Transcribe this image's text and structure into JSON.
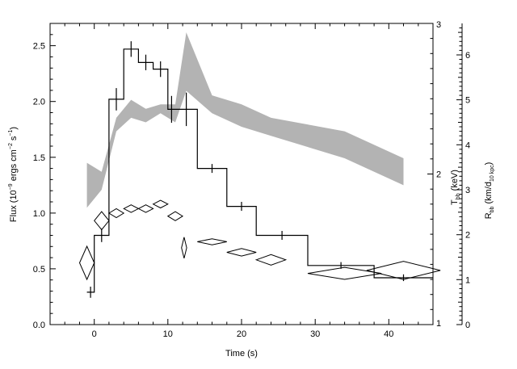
{
  "chart_data": {
    "type": "line",
    "xlabel": "Time (s)",
    "ylabel": {
      "main": "Flux",
      "unit_prefix": "(10",
      "unit_exp1": "−9",
      "unit_mid1": " ergs cm",
      "unit_exp2": "−2",
      "unit_mid2": " s",
      "unit_exp3": "−1",
      "unit_suffix": ")"
    },
    "y2label": {
      "main": "T",
      "sub": "bb",
      "unit": " (keV)"
    },
    "y3label": {
      "main": "R",
      "sub": "bb",
      "unit_start": " (km/d",
      "unit_sub": "10 kpc",
      "unit_end": ")"
    },
    "xlim": [
      -6,
      46
    ],
    "ylim": [
      0,
      2.7
    ],
    "y2lim": [
      1,
      3
    ],
    "y3lim": [
      0,
      6.7
    ],
    "x_ticks": [
      {
        "value": 0,
        "label": "0"
      },
      {
        "value": 10,
        "label": "10"
      },
      {
        "value": 20,
        "label": "20"
      },
      {
        "value": 30,
        "label": "30"
      },
      {
        "value": 40,
        "label": "40"
      }
    ],
    "y_ticks": [
      {
        "value": 0,
        "label": "0.0"
      },
      {
        "value": 0.5,
        "label": "0.5"
      },
      {
        "value": 1.0,
        "label": "1.0"
      },
      {
        "value": 1.5,
        "label": "1.5"
      },
      {
        "value": 2.0,
        "label": "2.0"
      },
      {
        "value": 2.5,
        "label": "2.5"
      }
    ],
    "y2_ticks": [
      {
        "value": 1,
        "label": "1"
      },
      {
        "value": 2,
        "label": "2"
      },
      {
        "value": 3,
        "label": "3"
      }
    ],
    "y3_ticks": [
      {
        "value": 0,
        "label": "0"
      },
      {
        "value": 1,
        "label": "1"
      },
      {
        "value": 2,
        "label": "2"
      },
      {
        "value": 3,
        "label": "3"
      },
      {
        "value": 4,
        "label": "4"
      },
      {
        "value": 5,
        "label": "5"
      },
      {
        "value": 6,
        "label": "6"
      }
    ],
    "series": [
      {
        "kind": "step-histogram",
        "axis": "flux",
        "bins": [
          {
            "x0": -1,
            "x1": 0,
            "y": 0.29,
            "err": 0.05
          },
          {
            "x0": 0,
            "x1": 2,
            "y": 0.8,
            "err": 0.06
          },
          {
            "x0": 2,
            "x1": 4,
            "y": 2.02,
            "err": 0.1
          },
          {
            "x0": 4,
            "x1": 6,
            "y": 2.47,
            "err": 0.07
          },
          {
            "x0": 6,
            "x1": 8,
            "y": 2.35,
            "err": 0.07
          },
          {
            "x0": 8,
            "x1": 10,
            "y": 2.29,
            "err": 0.07
          },
          {
            "x0": 10,
            "x1": 11,
            "y": 1.93,
            "err": 0.12
          },
          {
            "x0": 11,
            "x1": 14,
            "y": 1.93,
            "err": 0.15
          },
          {
            "x0": 14,
            "x1": 18,
            "y": 1.4,
            "err": 0.04
          },
          {
            "x0": 18,
            "x1": 22,
            "y": 1.06,
            "err": 0.04
          },
          {
            "x0": 22,
            "x1": 29,
            "y": 0.8,
            "err": 0.04
          },
          {
            "x0": 29,
            "x1": 38,
            "y": 0.53,
            "err": 0.03
          },
          {
            "x0": 38,
            "x1": 46,
            "y": 0.42,
            "err": 0.03
          }
        ]
      },
      {
        "kind": "band",
        "axis": "rbb",
        "x": [
          -1,
          1,
          3,
          5,
          7,
          9,
          11,
          12.5,
          16,
          20,
          24,
          34,
          42
        ],
        "lower": [
          2.6,
          3.0,
          4.3,
          4.6,
          4.5,
          4.7,
          4.5,
          5.2,
          4.7,
          4.4,
          4.2,
          3.7,
          3.1
        ],
        "upper": [
          3.6,
          3.4,
          4.6,
          5.0,
          4.8,
          4.9,
          4.9,
          6.5,
          5.1,
          4.9,
          4.6,
          4.3,
          3.7
        ]
      },
      {
        "kind": "diamonds",
        "axis": "tbb",
        "points": [
          {
            "x": -1,
            "y": 1.41,
            "xerr": 1.0,
            "yerr": 0.11
          },
          {
            "x": 1,
            "y": 1.69,
            "xerr": 1.0,
            "yerr": 0.06
          },
          {
            "x": 3,
            "y": 1.74,
            "xerr": 1.0,
            "yerr": 0.03
          },
          {
            "x": 5,
            "y": 1.77,
            "xerr": 1.0,
            "yerr": 0.025
          },
          {
            "x": 7,
            "y": 1.77,
            "xerr": 1.0,
            "yerr": 0.025
          },
          {
            "x": 9,
            "y": 1.8,
            "xerr": 1.0,
            "yerr": 0.025
          },
          {
            "x": 11,
            "y": 1.72,
            "xerr": 1.0,
            "yerr": 0.03
          },
          {
            "x": 12.2,
            "y": 1.51,
            "xerr": 0.35,
            "yerr": 0.07
          },
          {
            "x": 16,
            "y": 1.55,
            "xerr": 2.0,
            "yerr": 0.02
          },
          {
            "x": 20,
            "y": 1.48,
            "xerr": 2.0,
            "yerr": 0.025
          },
          {
            "x": 24,
            "y": 1.43,
            "xerr": 2.0,
            "yerr": 0.035
          },
          {
            "x": 34,
            "y": 1.34,
            "xerr": 5.0,
            "yerr": 0.04
          },
          {
            "x": 42,
            "y": 1.36,
            "xerr": 5.0,
            "yerr": 0.06
          }
        ]
      }
    ]
  }
}
